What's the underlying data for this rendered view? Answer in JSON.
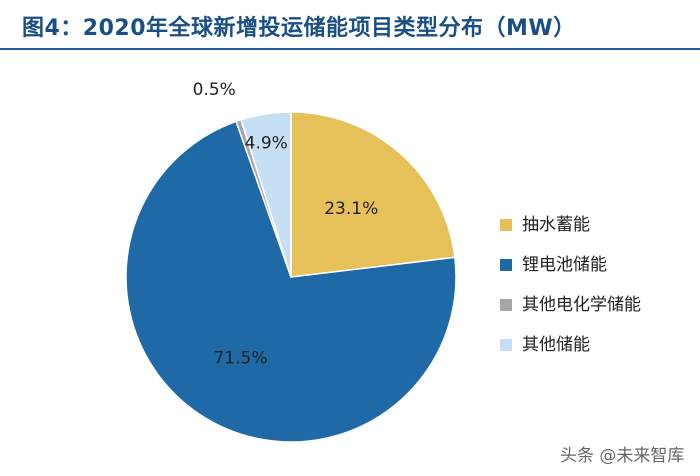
{
  "header": {
    "title": "图4：2020年全球新增投运储能项目类型分布（MW）"
  },
  "chart_data": {
    "type": "pie",
    "title": "图4：2020年全球新增投运储能项目类型分布（MW）",
    "slices": [
      {
        "label": "抽水蓄能",
        "value": 23.1,
        "value_label": "23.1%",
        "color": "#e6c15a"
      },
      {
        "label": "锂电池储能",
        "value": 71.5,
        "value_label": "71.5%",
        "color": "#1f6aa6"
      },
      {
        "label": "其他电化学储能",
        "value": 0.5,
        "value_label": "0.5%",
        "color": "#a6a6a6"
      },
      {
        "label": "其他储能",
        "value": 4.9,
        "value_label": "4.9%",
        "color": "#c6dff4"
      }
    ],
    "legend": "right"
  },
  "watermark": {
    "text": "头条 @未来智库"
  }
}
